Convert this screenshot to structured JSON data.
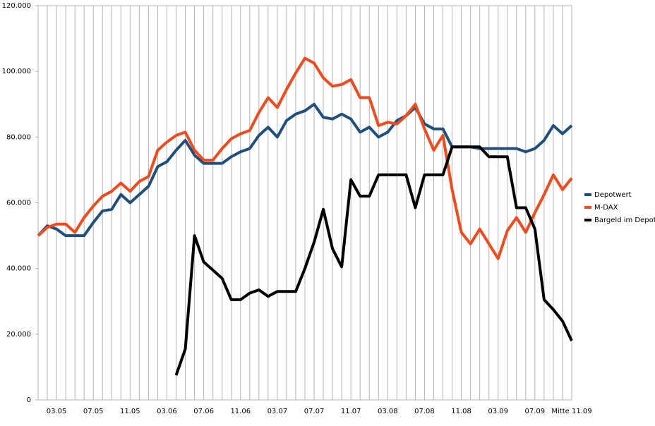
{
  "chart_data": {
    "type": "line",
    "categories": [
      null,
      null,
      "03.05",
      null,
      null,
      null,
      "07.05",
      null,
      null,
      null,
      "11.05",
      null,
      null,
      null,
      "03.06",
      null,
      null,
      null,
      "07.06",
      null,
      null,
      null,
      "11.06",
      null,
      null,
      null,
      "03.07",
      null,
      null,
      null,
      "07.07",
      null,
      null,
      null,
      "11.07",
      null,
      null,
      null,
      "03.08",
      null,
      null,
      null,
      "07.08",
      null,
      null,
      null,
      "11.08",
      null,
      null,
      null,
      "03.09",
      null,
      null,
      null,
      "07.09",
      null,
      null,
      null,
      "Mitte 11.09"
    ],
    "series": [
      {
        "name": "Depotwert",
        "color": "#1f4f7f",
        "values": [
          50000,
          53000,
          52000,
          50000,
          50000,
          50000,
          54000,
          57500,
          58000,
          62500,
          60000,
          62500,
          65000,
          71000,
          72500,
          76000,
          79000,
          74500,
          72000,
          72000,
          72000,
          74000,
          75500,
          76500,
          80500,
          83000,
          80000,
          85000,
          87000,
          88000,
          90000,
          86000,
          85500,
          87000,
          85500,
          81500,
          83000,
          80000,
          81500,
          85000,
          86500,
          89000,
          84000,
          82500,
          82500,
          77000,
          77000,
          77000,
          76500,
          76500,
          76500,
          76500,
          76500,
          75500,
          76500,
          79000,
          83500,
          81000,
          83500
        ]
      },
      {
        "name": "M-DAX",
        "color": "#f24a1c",
        "values": [
          50000,
          52500,
          53500,
          53500,
          51000,
          55500,
          59000,
          62000,
          63500,
          66000,
          63500,
          66500,
          68000,
          76000,
          78500,
          80500,
          81500,
          76000,
          73000,
          73000,
          76500,
          79500,
          81000,
          82000,
          87500,
          92000,
          89000,
          94500,
          99500,
          104000,
          102500,
          98000,
          95500,
          96000,
          97500,
          92000,
          92000,
          83500,
          84500,
          84000,
          86500,
          90000,
          82500,
          76000,
          80500,
          64000,
          51000,
          47500,
          52000,
          47500,
          43000,
          51500,
          55500,
          51000,
          57000,
          62500,
          68500,
          64000,
          67500
        ]
      },
      {
        "name": "Bargeld im Depot",
        "color": "#000000",
        "values": [
          null,
          null,
          null,
          null,
          null,
          null,
          null,
          null,
          null,
          null,
          null,
          null,
          null,
          null,
          null,
          7500,
          15500,
          50000,
          42000,
          39500,
          37000,
          30500,
          30500,
          32500,
          33500,
          31500,
          33000,
          33000,
          33000,
          40000,
          48000,
          58000,
          46000,
          40500,
          67000,
          62000,
          62000,
          68500,
          68500,
          68500,
          68500,
          58500,
          68500,
          68500,
          68500,
          77000,
          77000,
          77000,
          77000,
          74000,
          74000,
          74000,
          58500,
          58500,
          52000,
          30500,
          27500,
          24000,
          18000
        ]
      }
    ],
    "ylim": [
      0,
      120000
    ],
    "yticks": [
      0,
      {
        "value": 20000,
        "label": "20.000"
      },
      {
        "value": 40000,
        "label": "40.000"
      },
      {
        "value": 60000,
        "label": "60.000"
      },
      {
        "value": 80000,
        "label": "80.000"
      },
      {
        "value": 100000,
        "label": "100.000"
      },
      {
        "value": 120000,
        "label": "120.000"
      }
    ],
    "grid": true,
    "legend": "right"
  }
}
